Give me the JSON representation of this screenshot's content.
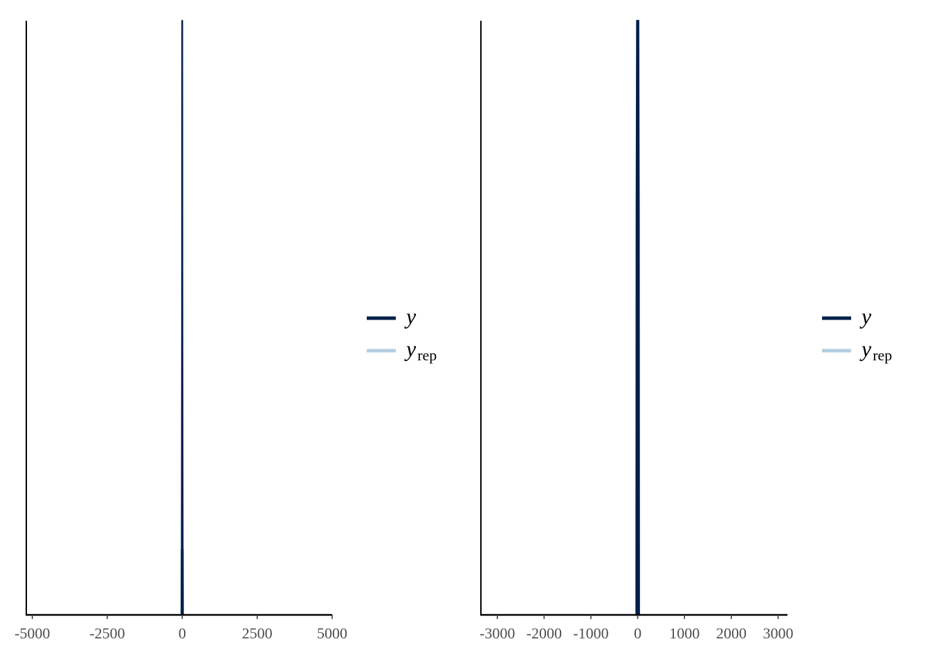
{
  "chart_data": [
    {
      "type": "line",
      "subtype": "density-overlay",
      "xlim": [
        -5200,
        5000
      ],
      "x_ticks": [
        -5000,
        -2500,
        0,
        2500,
        5000
      ],
      "x_tick_labels": [
        "-5000",
        "-2500",
        "0",
        "2500",
        "5000"
      ],
      "y_axis_ticks": false,
      "series": [
        {
          "name": "y",
          "color": "#011f4b",
          "x": [
            -25,
            -20,
            -15,
            -5,
            0,
            5,
            15,
            20,
            25
          ],
          "y": [
            0,
            0.11,
            0.11,
            0.5,
            1.0,
            0.5,
            0.11,
            0.11,
            0
          ]
        },
        {
          "name": "y_rep",
          "color": "#b3cde0",
          "x": [
            -25,
            0,
            25
          ],
          "y": [
            0,
            0.004,
            0
          ]
        }
      ],
      "legend": {
        "position": "right",
        "entries": [
          {
            "label": "y",
            "subscript": "",
            "color": "#011f4b"
          },
          {
            "label": "y",
            "subscript": "rep",
            "color": "#b3cde0"
          }
        ]
      }
    },
    {
      "type": "line",
      "subtype": "density-overlay",
      "xlim": [
        -3350,
        3200
      ],
      "x_ticks": [
        -3000,
        -2000,
        -1000,
        0,
        1000,
        2000,
        3000
      ],
      "x_tick_labels": [
        "-3000",
        "-2000",
        "-1000",
        "0",
        "1000",
        "2000",
        "3000"
      ],
      "y_axis_ticks": false,
      "series": [
        {
          "name": "y",
          "color": "#011f4b",
          "x": [
            -30,
            -25,
            -15,
            0,
            15,
            25,
            30
          ],
          "y": [
            0,
            0.67,
            1.0,
            1.0,
            1.0,
            0.67,
            0
          ]
        },
        {
          "name": "y_rep",
          "color": "#b3cde0",
          "x": [
            -40,
            0,
            40
          ],
          "y": [
            0,
            0.004,
            0
          ]
        }
      ],
      "legend": {
        "position": "right",
        "entries": [
          {
            "label": "y",
            "subscript": "",
            "color": "#011f4b"
          },
          {
            "label": "y",
            "subscript": "rep",
            "color": "#b3cde0"
          }
        ]
      }
    }
  ]
}
